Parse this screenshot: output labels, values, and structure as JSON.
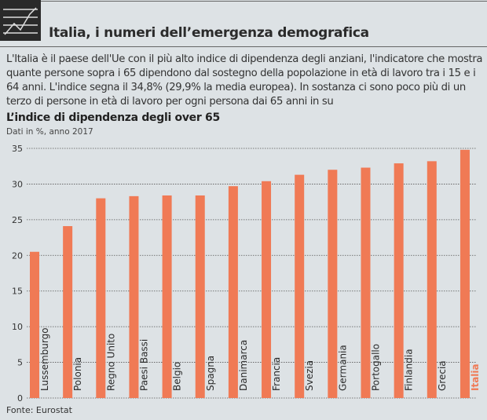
{
  "header": {
    "title": "Italia, i numeri dell’emergenza demografica",
    "icon": "chart-logo-icon"
  },
  "intro": "L'Italia è il paese dell'Ue con il più alto indice di dipendenza degli anziani, l'indicatore che mostra quante persone sopra i 65 dipendono dal sostegno della popolazione in età di lavoro tra i 15 e i 64 anni. L'indice segna il 34,8% (29,9% la media europea). In sostanza ci sono poco più di un terzo di persone in età di lavoro per ogni persona dai 65 anni in su",
  "chart_data": {
    "type": "bar",
    "title": "L’indice di dipendenza degli over 65",
    "subtitle": "Dati in %, anno 2017",
    "categories": [
      "Lussemburgo",
      "Polonia",
      "Regno Unito",
      "Paesi Bassi",
      "Belgio",
      "Spagna",
      "Danimarca",
      "Francia",
      "Svezia",
      "Germania",
      "Portogallo",
      "Finlandia",
      "Grecia",
      "Italia"
    ],
    "values": [
      20.5,
      24.1,
      28.0,
      28.3,
      28.4,
      28.4,
      29.7,
      30.4,
      31.3,
      32.0,
      32.3,
      32.9,
      33.2,
      34.8
    ],
    "ylim": [
      0,
      35
    ],
    "yticks": [
      0,
      5,
      10,
      15,
      20,
      25,
      30,
      35
    ],
    "grid": true,
    "highlight": "Italia",
    "colors": {
      "bar": "#f07a55",
      "highlight_label": "#f07a55",
      "label": "#2a2a2a"
    }
  },
  "source": "Fonte: Eurostat"
}
